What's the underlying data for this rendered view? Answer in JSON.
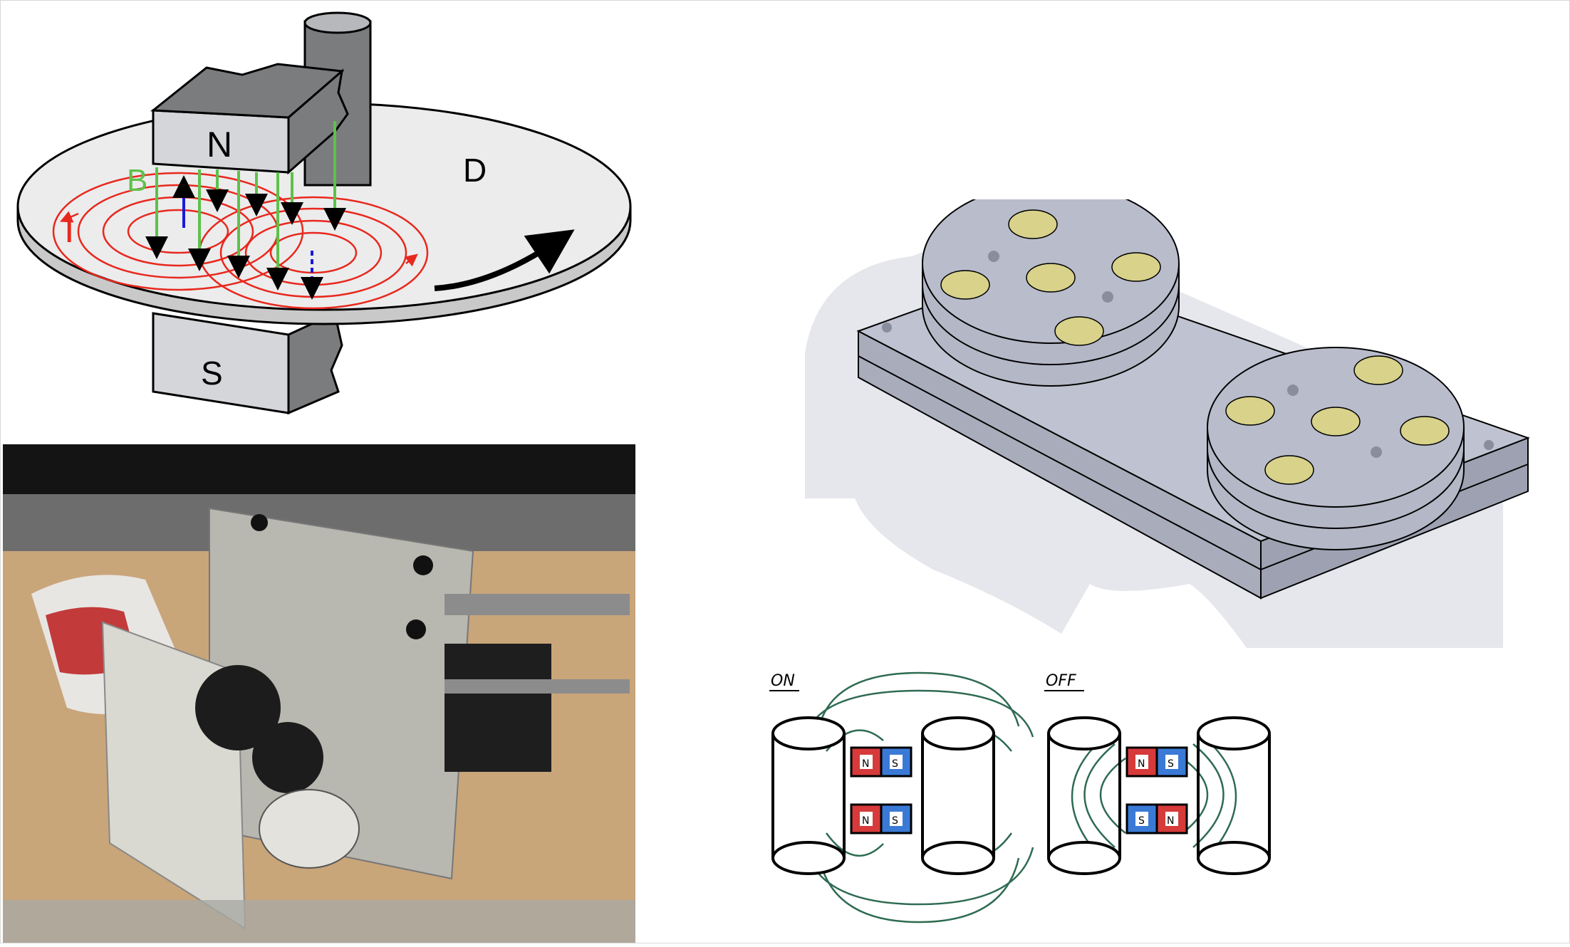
{
  "eddy_current_diagram": {
    "north_pole_label": "N",
    "south_pole_label": "S",
    "disc_label": "D",
    "field_label": "B",
    "current_label": "I",
    "colors": {
      "field": "#5cc24a",
      "current": "#e8281e",
      "force": "#1a1adb",
      "magnet": "#d4d6d9",
      "disc": "#ececec"
    }
  },
  "magnet_states_sketch": {
    "on_label": "ON",
    "off_label": "OFF",
    "north_label": "N",
    "south_label": "S",
    "colors": {
      "north": "#d63a3a",
      "south": "#3a7ad6",
      "field_lines": "#2e6b52"
    }
  },
  "cad_render": {
    "colors": {
      "body": "#b9bccb",
      "inserts": "#d8d28a",
      "shadow": "#cfd0d8"
    }
  },
  "photo": {
    "colors": {
      "plate": "#b8b8b0",
      "gear": "#1c1c1c",
      "bench": "#c9a57a",
      "motor": "#1e1e1e"
    }
  }
}
